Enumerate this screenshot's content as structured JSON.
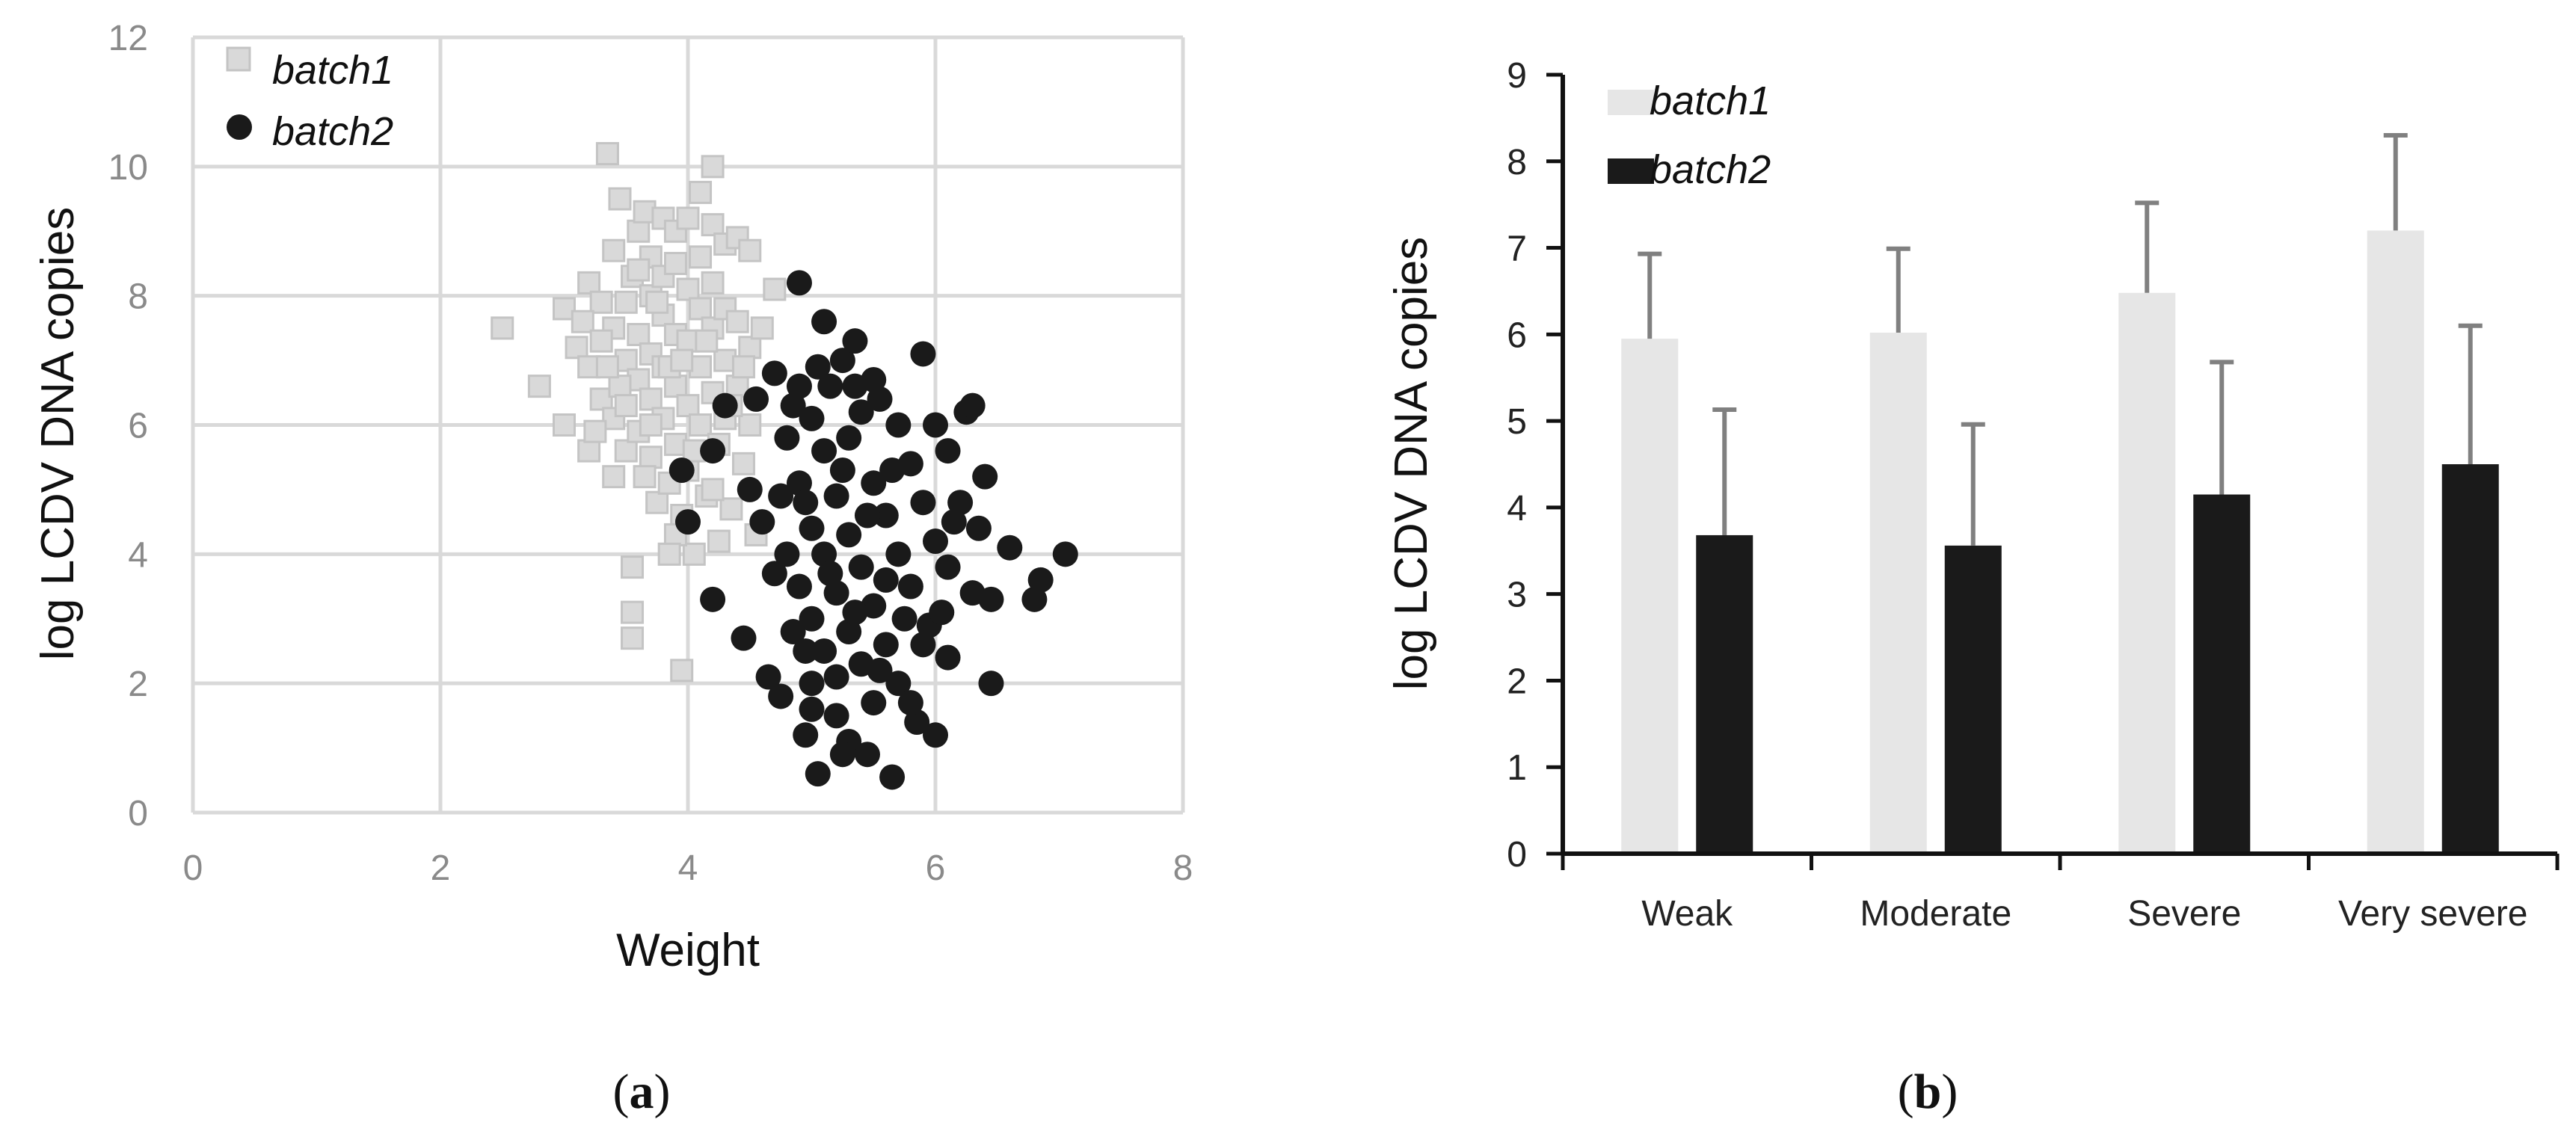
{
  "colors": {
    "batch1": "#d9d9d9",
    "batch1_stroke": "#c4c4c4",
    "batch1_bar": "#e6e6e6",
    "batch2": "#1a1a1a",
    "grid": "#d9d9d9",
    "error": "#808080",
    "axis_b": "#111111"
  },
  "panels": {
    "a": {
      "open": "(",
      "letter": "a",
      "close": ")"
    },
    "b": {
      "open": "(",
      "letter": "b",
      "close": ")"
    }
  },
  "chart_data": [
    {
      "type": "scatter",
      "xlabel": "Weight",
      "ylabel": "log LCDV DNA copies",
      "xlim": [
        0,
        8
      ],
      "ylim": [
        0,
        12
      ],
      "xticks": [
        0,
        2,
        4,
        6,
        8
      ],
      "yticks": [
        0,
        2,
        4,
        6,
        8,
        10,
        12
      ],
      "grid": true,
      "legend": {
        "position": "top-left",
        "entries": [
          "batch1",
          "batch2"
        ]
      },
      "series": [
        {
          "name": "batch1",
          "marker": "square",
          "points": [
            [
              2.5,
              7.5
            ],
            [
              2.8,
              6.6
            ],
            [
              3.0,
              7.8
            ],
            [
              3.1,
              7.2
            ],
            [
              3.2,
              8.2
            ],
            [
              3.2,
              6.9
            ],
            [
              3.3,
              7.9
            ],
            [
              3.3,
              6.4
            ],
            [
              3.35,
              10.2
            ],
            [
              3.4,
              8.7
            ],
            [
              3.4,
              7.5
            ],
            [
              3.4,
              6.1
            ],
            [
              3.45,
              9.5
            ],
            [
              3.5,
              7.9
            ],
            [
              3.5,
              7.0
            ],
            [
              3.5,
              5.6
            ],
            [
              3.55,
              8.3
            ],
            [
              3.6,
              9.0
            ],
            [
              3.6,
              7.4
            ],
            [
              3.6,
              6.7
            ],
            [
              3.6,
              5.9
            ],
            [
              3.65,
              9.3
            ],
            [
              3.7,
              8.6
            ],
            [
              3.7,
              8.0
            ],
            [
              3.7,
              7.1
            ],
            [
              3.7,
              6.4
            ],
            [
              3.7,
              5.5
            ],
            [
              3.75,
              4.8
            ],
            [
              3.8,
              9.2
            ],
            [
              3.8,
              8.3
            ],
            [
              3.8,
              7.7
            ],
            [
              3.8,
              6.9
            ],
            [
              3.8,
              6.1
            ],
            [
              3.85,
              5.1
            ],
            [
              3.9,
              9.0
            ],
            [
              3.9,
              8.5
            ],
            [
              3.9,
              7.4
            ],
            [
              3.9,
              6.6
            ],
            [
              3.9,
              5.7
            ],
            [
              3.95,
              4.6
            ],
            [
              4.0,
              9.2
            ],
            [
              4.0,
              8.1
            ],
            [
              4.0,
              7.3
            ],
            [
              4.0,
              6.3
            ],
            [
              4.0,
              5.3
            ],
            [
              4.05,
              4.0
            ],
            [
              4.1,
              9.6
            ],
            [
              4.1,
              8.6
            ],
            [
              4.1,
              7.8
            ],
            [
              4.1,
              6.9
            ],
            [
              4.1,
              6.0
            ],
            [
              4.15,
              4.9
            ],
            [
              4.2,
              10.0
            ],
            [
              4.2,
              9.1
            ],
            [
              4.2,
              8.2
            ],
            [
              4.2,
              7.5
            ],
            [
              4.2,
              6.5
            ],
            [
              4.25,
              5.7
            ],
            [
              4.3,
              8.8
            ],
            [
              4.3,
              7.8
            ],
            [
              4.3,
              7.0
            ],
            [
              4.3,
              6.1
            ],
            [
              4.35,
              4.7
            ],
            [
              4.4,
              8.9
            ],
            [
              4.4,
              7.6
            ],
            [
              4.4,
              6.6
            ],
            [
              4.45,
              5.4
            ],
            [
              4.5,
              8.7
            ],
            [
              4.5,
              7.2
            ],
            [
              4.5,
              6.0
            ],
            [
              4.55,
              4.3
            ],
            [
              4.6,
              7.5
            ],
            [
              4.7,
              8.1
            ],
            [
              3.0,
              6.0
            ],
            [
              3.2,
              5.6
            ],
            [
              3.4,
              5.2
            ],
            [
              3.55,
              3.8
            ],
            [
              3.55,
              3.1
            ],
            [
              3.55,
              2.7
            ],
            [
              3.95,
              2.2
            ],
            [
              3.15,
              7.6
            ],
            [
              3.45,
              6.6
            ],
            [
              3.75,
              7.9
            ],
            [
              3.85,
              6.9
            ],
            [
              4.15,
              7.3
            ],
            [
              4.35,
              6.3
            ],
            [
              3.25,
              5.9
            ],
            [
              3.5,
              6.3
            ],
            [
              3.65,
              5.2
            ],
            [
              3.9,
              4.3
            ],
            [
              4.05,
              5.6
            ],
            [
              4.25,
              4.2
            ],
            [
              3.35,
              6.9
            ],
            [
              3.6,
              8.4
            ],
            [
              3.95,
              7.0
            ],
            [
              4.45,
              6.9
            ],
            [
              3.3,
              7.3
            ],
            [
              3.7,
              6.0
            ],
            [
              3.85,
              4.0
            ],
            [
              4.2,
              5.0
            ]
          ]
        },
        {
          "name": "batch2",
          "marker": "circle",
          "points": [
            [
              3.95,
              5.3
            ],
            [
              4.0,
              4.5
            ],
            [
              4.2,
              3.3
            ],
            [
              4.2,
              5.6
            ],
            [
              4.3,
              6.3
            ],
            [
              4.45,
              2.7
            ],
            [
              4.5,
              5.0
            ],
            [
              4.55,
              6.4
            ],
            [
              4.6,
              4.5
            ],
            [
              4.65,
              2.1
            ],
            [
              4.7,
              6.8
            ],
            [
              4.7,
              3.7
            ],
            [
              4.75,
              1.8
            ],
            [
              4.8,
              5.8
            ],
            [
              4.8,
              4.0
            ],
            [
              4.85,
              2.8
            ],
            [
              4.9,
              8.2
            ],
            [
              4.9,
              6.6
            ],
            [
              4.9,
              5.1
            ],
            [
              4.9,
              3.5
            ],
            [
              4.95,
              1.2
            ],
            [
              5.0,
              6.1
            ],
            [
              5.0,
              4.4
            ],
            [
              5.0,
              3.0
            ],
            [
              5.0,
              2.0
            ],
            [
              5.05,
              0.6
            ],
            [
              5.1,
              7.6
            ],
            [
              5.1,
              5.6
            ],
            [
              5.1,
              4.0
            ],
            [
              5.1,
              2.5
            ],
            [
              5.15,
              6.6
            ],
            [
              5.2,
              4.9
            ],
            [
              5.2,
              3.4
            ],
            [
              5.2,
              1.5
            ],
            [
              5.25,
              7.0
            ],
            [
              5.3,
              5.8
            ],
            [
              5.3,
              4.3
            ],
            [
              5.3,
              2.8
            ],
            [
              5.3,
              1.1
            ],
            [
              5.35,
              7.3
            ],
            [
              5.4,
              6.2
            ],
            [
              5.4,
              3.8
            ],
            [
              5.4,
              2.3
            ],
            [
              5.45,
              0.9
            ],
            [
              5.5,
              6.7
            ],
            [
              5.5,
              5.1
            ],
            [
              5.5,
              3.2
            ],
            [
              5.5,
              1.7
            ],
            [
              5.55,
              6.4
            ],
            [
              5.6,
              4.6
            ],
            [
              5.6,
              2.6
            ],
            [
              5.65,
              0.55
            ],
            [
              5.7,
              6.0
            ],
            [
              5.7,
              4.0
            ],
            [
              5.7,
              2.0
            ],
            [
              5.8,
              5.4
            ],
            [
              5.8,
              3.5
            ],
            [
              5.85,
              1.4
            ],
            [
              5.9,
              7.1
            ],
            [
              5.9,
              4.8
            ],
            [
              5.95,
              2.9
            ],
            [
              6.0,
              6.0
            ],
            [
              6.0,
              4.2
            ],
            [
              6.0,
              1.2
            ],
            [
              6.1,
              5.6
            ],
            [
              6.1,
              3.8
            ],
            [
              6.1,
              2.4
            ],
            [
              6.2,
              4.8
            ],
            [
              6.25,
              6.2
            ],
            [
              6.3,
              3.4
            ],
            [
              6.3,
              6.3
            ],
            [
              6.35,
              4.4
            ],
            [
              6.4,
              5.2
            ],
            [
              6.45,
              2.0
            ],
            [
              6.45,
              3.3
            ],
            [
              6.6,
              4.1
            ],
            [
              6.8,
              3.3
            ],
            [
              6.85,
              3.6
            ],
            [
              7.05,
              4.0
            ],
            [
              5.05,
              6.9
            ],
            [
              5.25,
              5.3
            ],
            [
              5.45,
              4.6
            ],
            [
              5.15,
              3.7
            ],
            [
              5.35,
              3.1
            ],
            [
              5.55,
              2.2
            ],
            [
              5.0,
              1.6
            ],
            [
              5.2,
              2.1
            ],
            [
              4.95,
              4.8
            ],
            [
              5.65,
              5.3
            ],
            [
              5.75,
              3.0
            ],
            [
              4.85,
              6.3
            ],
            [
              5.35,
              6.6
            ],
            [
              5.6,
              3.6
            ],
            [
              5.9,
              2.6
            ],
            [
              6.05,
              3.1
            ],
            [
              5.8,
              1.7
            ],
            [
              4.75,
              4.9
            ],
            [
              5.25,
              0.9
            ],
            [
              6.15,
              4.5
            ],
            [
              4.95,
              2.5
            ]
          ]
        }
      ]
    },
    {
      "type": "bar",
      "xlabel": "",
      "ylabel": "log LCDV DNA copies",
      "ylim": [
        0,
        9
      ],
      "yticks": [
        0,
        1,
        2,
        3,
        4,
        5,
        6,
        7,
        8,
        9
      ],
      "categories": [
        "Weak",
        "Moderate",
        "Severe",
        "Very severe"
      ],
      "legend": {
        "position": "top-left",
        "entries": [
          "batch1",
          "batch2"
        ]
      },
      "series": [
        {
          "name": "batch1",
          "values": [
            5.95,
            6.02,
            6.48,
            7.2
          ],
          "error": [
            0.98,
            0.97,
            1.04,
            1.1
          ]
        },
        {
          "name": "batch2",
          "values": [
            3.68,
            3.56,
            4.15,
            4.5
          ],
          "error": [
            1.45,
            1.4,
            1.53,
            1.6
          ]
        }
      ]
    }
  ]
}
